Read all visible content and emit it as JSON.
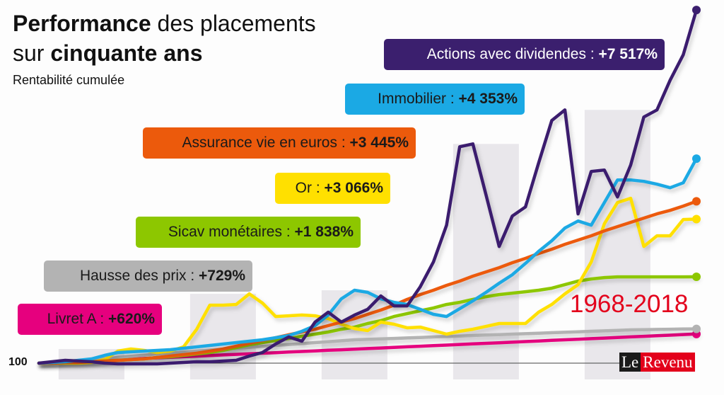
{
  "title": {
    "bold1": "Performance",
    "rest1": " des placements",
    "pre2": "sur ",
    "bold2": "cinquante ans"
  },
  "subtitle": "Rentabilité cumulée",
  "period": "1968-2018",
  "baseline_label": "100",
  "logo": {
    "part1": "Le",
    "part2": "Revenu"
  },
  "chart_data": {
    "type": "line",
    "x_start": 1968,
    "x_end": 2018,
    "ylim": [
      0,
      7830
    ],
    "baseline": 100,
    "grid": false,
    "shaded_periods": [
      [
        1969.5,
        1974.5
      ],
      [
        1979.5,
        1984.5
      ],
      [
        1989.5,
        1994.5
      ],
      [
        1999.5,
        2004.5
      ],
      [
        2009.5,
        2014.5
      ]
    ],
    "series": [
      {
        "key": "livret",
        "label": "Livret A : ",
        "value_label": "+620%",
        "color": "#e6007e",
        "text_color": "#1a1a1a",
        "values": [
          100,
          112,
          125,
          137,
          150,
          162,
          174,
          187,
          199,
          212,
          224,
          236,
          249,
          261,
          274,
          286,
          298,
          311,
          323,
          336,
          348,
          360,
          373,
          385,
          398,
          410,
          422,
          435,
          447,
          460,
          472,
          484,
          497,
          509,
          522,
          534,
          546,
          559,
          571,
          584,
          596,
          608,
          621,
          633,
          646,
          658,
          670,
          683,
          695,
          708,
          720
        ]
      },
      {
        "key": "prix",
        "label": "Hausse des prix : ",
        "value_label": "+729%",
        "color": "#b3b3b3",
        "text_color": "#1a1a1a",
        "values": [
          100,
          115,
          130,
          145,
          170,
          195,
          220,
          245,
          270,
          295,
          315,
          335,
          356,
          376,
          396,
          416,
          436,
          456,
          476,
          496,
          516,
          536,
          556,
          576,
          596,
          606,
          616,
          626,
          636,
          646,
          657,
          667,
          677,
          687,
          697,
          707,
          717,
          727,
          737,
          747,
          757,
          767,
          777,
          787,
          797,
          807,
          812,
          817,
          822,
          826,
          829
        ]
      },
      {
        "key": "sicav",
        "label": "Sicav monétaires : ",
        "value_label": "+1 838%",
        "color": "#8dc700",
        "text_color": "#1a1a1a",
        "values": [
          100,
          100,
          114,
          114,
          130,
          145,
          160,
          175,
          190,
          220,
          235,
          265,
          295,
          325,
          371,
          431,
          491,
          536,
          581,
          626,
          672,
          717,
          762,
          822,
          867,
          943,
          1003,
          1093,
          1153,
          1214,
          1274,
          1349,
          1394,
          1455,
          1515,
          1560,
          1590,
          1620,
          1651,
          1696,
          1771,
          1846,
          1891,
          1922,
          1937,
          1937,
          1937,
          1937,
          1937,
          1937,
          1938
        ]
      },
      {
        "key": "or",
        "label": "Or : ",
        "value_label": "+3 066%",
        "color": "#ffe000",
        "text_color": "#1a1a1a",
        "values": [
          100,
          100,
          100,
          100,
          114,
          175,
          355,
          401,
          370,
          325,
          355,
          446,
          822,
          1334,
          1334,
          1349,
          1575,
          1379,
          1093,
          1108,
          1124,
          1108,
          1048,
          928,
          837,
          792,
          973,
          928,
          852,
          867,
          792,
          717,
          777,
          822,
          882,
          943,
          943,
          943,
          1184,
          1349,
          1575,
          1771,
          2253,
          3066,
          3518,
          3609,
          2585,
          2810,
          2810,
          3157,
          3166
        ]
      },
      {
        "key": "assurance",
        "label": "Assurance vie en euros : ",
        "value_label": "+3 445%",
        "color": "#ec5a0c",
        "text_color": "#1a1a1a",
        "values": [
          100,
          100,
          114,
          114,
          130,
          145,
          160,
          175,
          190,
          220,
          250,
          280,
          310,
          356,
          401,
          461,
          521,
          581,
          641,
          702,
          762,
          822,
          898,
          973,
          1048,
          1139,
          1229,
          1334,
          1455,
          1560,
          1651,
          1756,
          1846,
          1952,
          2042,
          2133,
          2238,
          2329,
          2434,
          2524,
          2630,
          2720,
          2811,
          2916,
          3006,
          3096,
          3187,
          3277,
          3352,
          3443,
          3545
        ]
      },
      {
        "key": "immobilier",
        "label": "Immobilier : ",
        "value_label": "+4 353%",
        "color": "#1ba9e4",
        "text_color": "#1a1a1a",
        "values": [
          100,
          114,
          130,
          160,
          190,
          265,
          325,
          340,
          355,
          370,
          386,
          416,
          446,
          476,
          506,
          536,
          566,
          596,
          641,
          687,
          777,
          898,
          1124,
          1470,
          1651,
          1606,
          1470,
          1394,
          1349,
          1244,
          1139,
          1093,
          1259,
          1425,
          1606,
          1801,
          1982,
          2223,
          2479,
          2705,
          2976,
          3126,
          3036,
          3518,
          3999,
          3999,
          3969,
          3909,
          3834,
          3939,
          4453
        ]
      },
      {
        "key": "actions",
        "label": "Actions avec dividendes : ",
        "value_label": "+7 517%",
        "color": "#3b1f6e",
        "text_color": "#ffffff",
        "values": [
          100,
          130,
          160,
          145,
          130,
          100,
          84,
          84,
          84,
          84,
          100,
          114,
          130,
          130,
          145,
          160,
          250,
          325,
          506,
          657,
          566,
          973,
          1184,
          973,
          1123,
          1244,
          1530,
          1319,
          1319,
          1726,
          2253,
          3036,
          4706,
          4766,
          3682,
          2583,
          3231,
          3426,
          4360,
          5264,
          5490,
          3276,
          4180,
          4210,
          3637,
          4316,
          5339,
          5490,
          6122,
          6665,
          7617
        ]
      }
    ]
  }
}
